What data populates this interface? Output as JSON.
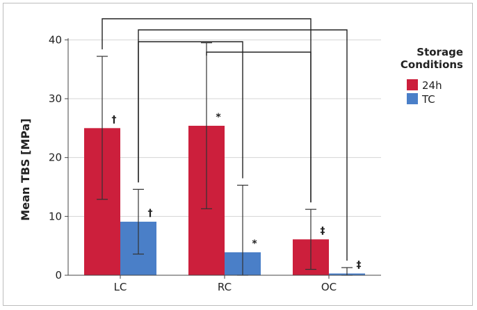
{
  "chart_data": {
    "type": "bar",
    "categories": [
      "LC",
      "RC",
      "OC"
    ],
    "ylabel": "Mean TBS [MPa]",
    "ylim": [
      0,
      45
    ],
    "yticks": [
      0,
      10,
      20,
      30,
      40
    ],
    "grid": true,
    "legend": {
      "title_lines": [
        "Storage",
        "Conditions"
      ],
      "placement": "right"
    },
    "series": [
      {
        "name": "24h",
        "color": "#cc1f3c",
        "values": [
          25.0,
          25.4,
          6.1
        ],
        "error_low": [
          12.9,
          11.3,
          1.0
        ],
        "error_high": [
          37.2,
          39.5,
          11.2
        ],
        "annotations": [
          "†",
          "*",
          "‡"
        ]
      },
      {
        "name": "TC",
        "color": "#4a7fc8",
        "values": [
          9.1,
          3.9,
          0.3
        ],
        "error_low": [
          3.6,
          0.0,
          0.0
        ],
        "error_high": [
          14.6,
          15.3,
          1.3
        ],
        "annotations": [
          "†",
          "*",
          "‡"
        ]
      }
    ],
    "significance_brackets": [
      {
        "from": "LC-24h",
        "to": "OC-24h"
      },
      {
        "from": "LC-TC",
        "to": "OC-TC"
      },
      {
        "from": "LC-TC",
        "to": "RC-TC"
      },
      {
        "from": "RC-24h",
        "to": "OC-24h"
      }
    ]
  }
}
